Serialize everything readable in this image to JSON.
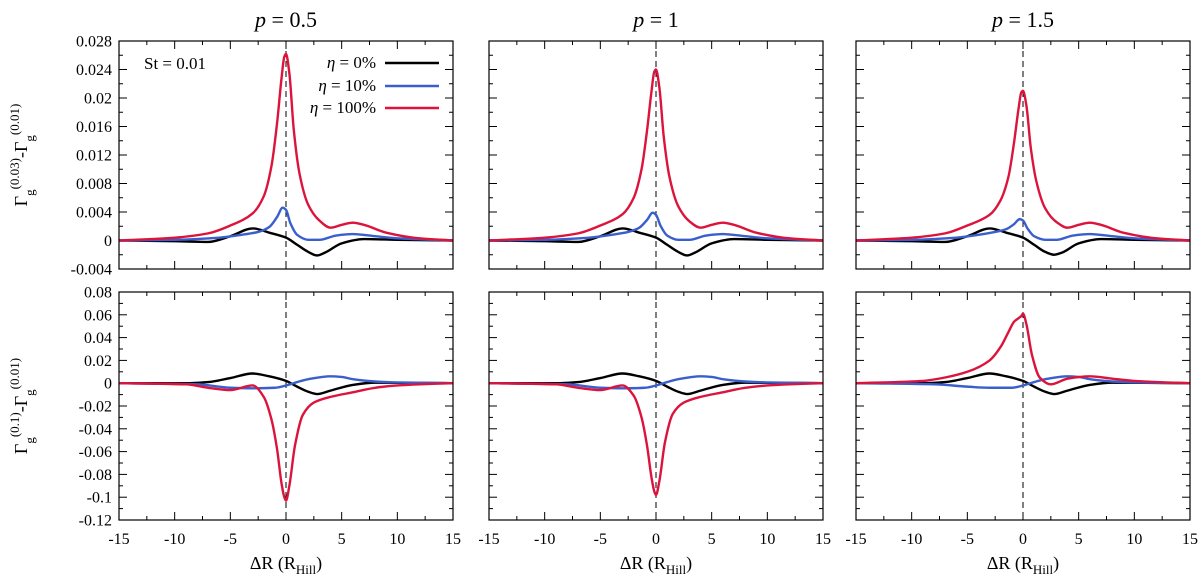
{
  "figure": {
    "columns": [
      {
        "title_var": "p",
        "title_eq": " = ",
        "title_val": "0.5"
      },
      {
        "title_var": "p",
        "title_eq": " = ",
        "title_val": "1"
      },
      {
        "title_var": "p",
        "title_eq": " = ",
        "title_val": "1.5"
      }
    ],
    "xlabel_main": "ΔR (R",
    "xlabel_sub": "Hill",
    "xlabel_close": ")",
    "ylabel_top": {
      "a": "Γ",
      "a_sub": "g",
      "a_sup": "(0.03)",
      "mid": "-Γ",
      "b_sub": "g",
      "b_sup": "(0.01)"
    },
    "ylabel_bottom": {
      "a": "Γ",
      "a_sub": "g",
      "a_sup": "(0.1)",
      "mid": "-Γ",
      "b_sub": "g",
      "b_sup": "(0.01)"
    },
    "annotation": "St = 0.01",
    "legend": [
      {
        "prefix": "η",
        "label": " = 0%",
        "color": "#000000"
      },
      {
        "prefix": "η",
        "label": " = 10%",
        "color": "#3a5fcd"
      },
      {
        "prefix": "η",
        "label": " = 100%",
        "color": "#dc143c"
      }
    ]
  },
  "chart_data": [
    {
      "type": "line",
      "row": 0,
      "col": 0,
      "xlim": [
        -15,
        15
      ],
      "ylim": [
        -0.004,
        0.028
      ],
      "xticks": [
        "-15",
        "-10",
        "-5",
        "0",
        "5",
        "10",
        "15"
      ],
      "yticks": [
        "-0.004",
        "0",
        "0.004",
        "0.008",
        "0.012",
        "0.016",
        "0.02",
        "0.024",
        "0.028"
      ],
      "vline_x": 0,
      "series": [
        {
          "name": "η = 0%",
          "color": "#000000",
          "x": [
            -15,
            -10,
            -7,
            -5,
            -3,
            -1.5,
            0,
            1,
            2,
            2.8,
            3.5,
            5,
            7,
            10,
            15
          ],
          "y": [
            0,
            -0.0001,
            -0.0002,
            0.0006,
            0.0017,
            0.0011,
            0.0004,
            -0.0006,
            -0.0016,
            -0.0021,
            -0.0017,
            -0.0004,
            0.0002,
            0.0001,
            0
          ]
        },
        {
          "name": "η = 10%",
          "color": "#3a5fcd",
          "x": [
            -15,
            -10,
            -6,
            -4,
            -2.5,
            -1.5,
            -0.8,
            -0.3,
            0,
            0.4,
            1,
            2,
            3,
            4.5,
            6,
            8,
            10,
            15
          ],
          "y": [
            0,
            0.0001,
            0.0004,
            0.0008,
            0.0012,
            0.0019,
            0.0033,
            0.0046,
            0.0043,
            0.0024,
            0.0008,
            0.0001,
            0.0001,
            0.0007,
            0.0009,
            0.0006,
            0.0003,
            0
          ]
        },
        {
          "name": "η = 100%",
          "color": "#dc143c",
          "x": [
            -15,
            -10,
            -7,
            -5,
            -3,
            -2,
            -1.3,
            -0.8,
            -0.4,
            -0.15,
            0,
            0.3,
            0.7,
            1.2,
            2,
            3,
            4,
            5,
            6,
            7,
            9,
            12,
            15
          ],
          "y": [
            0,
            0.0004,
            0.001,
            0.0021,
            0.0038,
            0.0062,
            0.0105,
            0.0165,
            0.0228,
            0.0258,
            0.0262,
            0.0235,
            0.0155,
            0.0095,
            0.005,
            0.0028,
            0.0018,
            0.0022,
            0.0025,
            0.0022,
            0.0011,
            0.0003,
            0
          ]
        }
      ]
    },
    {
      "type": "line",
      "row": 0,
      "col": 1,
      "xlim": [
        -15,
        15
      ],
      "ylim": [
        -0.004,
        0.028
      ],
      "xticks": [
        "-15",
        "-10",
        "-5",
        "0",
        "5",
        "10",
        "15"
      ],
      "vline_x": 0,
      "series": [
        {
          "name": "η = 0%",
          "color": "#000000",
          "x": [
            -15,
            -10,
            -7,
            -5,
            -3,
            -1.5,
            0,
            1,
            2,
            2.8,
            3.5,
            5,
            7,
            10,
            15
          ],
          "y": [
            0,
            -0.0001,
            -0.0002,
            0.0006,
            0.0017,
            0.0011,
            0.0004,
            -0.0006,
            -0.0016,
            -0.0021,
            -0.0017,
            -0.0004,
            0.0002,
            0.0001,
            0
          ]
        },
        {
          "name": "η = 10%",
          "color": "#3a5fcd",
          "x": [
            -15,
            -10,
            -6,
            -4,
            -2.5,
            -1.5,
            -0.8,
            -0.3,
            0,
            0.4,
            1,
            2,
            3,
            4.5,
            6,
            8,
            10,
            15
          ],
          "y": [
            0,
            0.0001,
            0.0004,
            0.0008,
            0.0012,
            0.0018,
            0.0029,
            0.0039,
            0.0036,
            0.0021,
            0.0007,
            0.0001,
            0.0001,
            0.0007,
            0.0009,
            0.0006,
            0.0003,
            0
          ]
        },
        {
          "name": "η = 100%",
          "color": "#dc143c",
          "x": [
            -15,
            -10,
            -7,
            -5,
            -3,
            -2,
            -1.3,
            -0.8,
            -0.4,
            -0.15,
            0,
            0.3,
            0.7,
            1.2,
            2,
            3,
            4,
            5,
            6,
            7,
            9,
            12,
            15
          ],
          "y": [
            0,
            0.0004,
            0.001,
            0.0021,
            0.0037,
            0.006,
            0.01,
            0.0155,
            0.021,
            0.0237,
            0.024,
            0.0215,
            0.0145,
            0.009,
            0.0048,
            0.0027,
            0.0018,
            0.0022,
            0.0025,
            0.0022,
            0.0011,
            0.0003,
            0
          ]
        }
      ]
    },
    {
      "type": "line",
      "row": 0,
      "col": 2,
      "xlim": [
        -15,
        15
      ],
      "ylim": [
        -0.004,
        0.028
      ],
      "xticks": [
        "-15",
        "-10",
        "-5",
        "0",
        "5",
        "10",
        "15"
      ],
      "vline_x": 0,
      "series": [
        {
          "name": "η = 0%",
          "color": "#000000",
          "x": [
            -15,
            -10,
            -7,
            -5,
            -3,
            -1.5,
            0,
            1,
            2,
            2.8,
            3.5,
            5,
            7,
            10,
            15
          ],
          "y": [
            0,
            -0.0001,
            -0.0002,
            0.0006,
            0.0017,
            0.0011,
            0.0004,
            -0.0006,
            -0.0016,
            -0.002,
            -0.0017,
            -0.0004,
            0.0002,
            0.0001,
            0
          ]
        },
        {
          "name": "η = 10%",
          "color": "#3a5fcd",
          "x": [
            -15,
            -10,
            -6,
            -4,
            -2.5,
            -1.5,
            -0.8,
            -0.3,
            0,
            0.4,
            1,
            2,
            3,
            4.5,
            6,
            8,
            10,
            15
          ],
          "y": [
            0,
            0.0001,
            0.0004,
            0.0008,
            0.0012,
            0.0016,
            0.0023,
            0.003,
            0.0028,
            0.0017,
            0.0006,
            0.0001,
            0.0001,
            0.0007,
            0.0009,
            0.0006,
            0.0003,
            0
          ]
        },
        {
          "name": "η = 100%",
          "color": "#dc143c",
          "x": [
            -15,
            -10,
            -7,
            -5,
            -3,
            -2,
            -1.3,
            -0.8,
            -0.4,
            -0.15,
            0,
            0.3,
            0.7,
            1.2,
            2,
            3,
            4,
            5,
            6,
            7,
            9,
            12,
            15
          ],
          "y": [
            0,
            0.0004,
            0.001,
            0.0021,
            0.0036,
            0.0057,
            0.009,
            0.0138,
            0.0185,
            0.0208,
            0.021,
            0.019,
            0.013,
            0.0083,
            0.0045,
            0.0026,
            0.0018,
            0.0022,
            0.0025,
            0.0022,
            0.0011,
            0.0003,
            0
          ]
        }
      ]
    },
    {
      "type": "line",
      "row": 1,
      "col": 0,
      "xlim": [
        -15,
        15
      ],
      "ylim": [
        -0.12,
        0.08
      ],
      "xticks": [
        "-15",
        "-10",
        "-5",
        "0",
        "5",
        "10",
        "15"
      ],
      "yticks": [
        "-0.12",
        "-0.1",
        "-0.08",
        "-0.06",
        "-0.04",
        "-0.02",
        "0",
        "0.02",
        "0.04",
        "0.06",
        "0.08"
      ],
      "vline_x": 0,
      "series": [
        {
          "name": "η = 0%",
          "color": "#000000",
          "x": [
            -15,
            -9,
            -7,
            -5,
            -3,
            -1.5,
            0,
            1,
            2,
            2.8,
            4,
            6,
            8,
            15
          ],
          "y": [
            0,
            0,
            0.001,
            0.0045,
            0.0085,
            0.006,
            0.002,
            -0.003,
            -0.0075,
            -0.0095,
            -0.0065,
            -0.0015,
            0.0005,
            0
          ]
        },
        {
          "name": "η = 10%",
          "color": "#3a5fcd",
          "x": [
            -15,
            -8,
            -5,
            -3,
            -1,
            0,
            1,
            2,
            4,
            5,
            6,
            8,
            10,
            15
          ],
          "y": [
            0,
            -0.001,
            -0.004,
            -0.0045,
            -0.004,
            -0.002,
            0.001,
            0.0035,
            0.006,
            0.0055,
            0.0035,
            0.0015,
            0.0007,
            0
          ]
        },
        {
          "name": "η = 100%",
          "color": "#dc143c",
          "x": [
            -15,
            -9,
            -7,
            -5,
            -3,
            -2,
            -1.3,
            -0.8,
            -0.4,
            -0.15,
            0,
            0.3,
            0.8,
            1.5,
            2.5,
            4,
            6,
            8,
            10,
            12,
            15
          ],
          "y": [
            0,
            -0.001,
            -0.004,
            -0.006,
            -0.002,
            -0.012,
            -0.032,
            -0.058,
            -0.088,
            -0.1,
            -0.103,
            -0.09,
            -0.055,
            -0.028,
            -0.017,
            -0.012,
            -0.008,
            -0.004,
            -0.002,
            -0.001,
            0
          ]
        }
      ]
    },
    {
      "type": "line",
      "row": 1,
      "col": 1,
      "xlim": [
        -15,
        15
      ],
      "ylim": [
        -0.12,
        0.08
      ],
      "xticks": [
        "-15",
        "-10",
        "-5",
        "0",
        "5",
        "10",
        "15"
      ],
      "vline_x": 0,
      "series": [
        {
          "name": "η = 0%",
          "color": "#000000",
          "x": [
            -15,
            -9,
            -7,
            -5,
            -3,
            -1.5,
            0,
            1,
            2,
            2.8,
            4,
            6,
            8,
            15
          ],
          "y": [
            0,
            0,
            0.001,
            0.0045,
            0.0085,
            0.006,
            0.002,
            -0.003,
            -0.0075,
            -0.0095,
            -0.0065,
            -0.0015,
            0.0005,
            0
          ]
        },
        {
          "name": "η = 10%",
          "color": "#3a5fcd",
          "x": [
            -15,
            -8,
            -5,
            -3,
            -1,
            0,
            1,
            2,
            4,
            5,
            6,
            8,
            10,
            15
          ],
          "y": [
            0,
            -0.001,
            -0.004,
            -0.0045,
            -0.004,
            -0.002,
            0.001,
            0.0035,
            0.006,
            0.0055,
            0.0035,
            0.0015,
            0.0007,
            0
          ]
        },
        {
          "name": "η = 100%",
          "color": "#dc143c",
          "x": [
            -15,
            -9,
            -7,
            -5,
            -3,
            -2,
            -1.3,
            -0.8,
            -0.4,
            -0.15,
            0,
            0.3,
            0.8,
            1.5,
            2.5,
            4,
            6,
            8,
            10,
            12,
            15
          ],
          "y": [
            0,
            -0.001,
            -0.004,
            -0.006,
            -0.002,
            -0.011,
            -0.03,
            -0.055,
            -0.083,
            -0.095,
            -0.098,
            -0.086,
            -0.052,
            -0.027,
            -0.017,
            -0.012,
            -0.008,
            -0.004,
            -0.002,
            -0.001,
            0
          ]
        }
      ]
    },
    {
      "type": "line",
      "row": 1,
      "col": 2,
      "xlim": [
        -15,
        15
      ],
      "ylim": [
        -0.12,
        0.08
      ],
      "xticks": [
        "-15",
        "-10",
        "-5",
        "0",
        "5",
        "10",
        "15"
      ],
      "vline_x": 0,
      "series": [
        {
          "name": "η = 0%",
          "color": "#000000",
          "x": [
            -15,
            -9,
            -7,
            -5,
            -3,
            -1.5,
            0,
            1,
            2,
            2.8,
            4,
            6,
            8,
            15
          ],
          "y": [
            0,
            0,
            0.001,
            0.0045,
            0.0085,
            0.006,
            0.002,
            -0.003,
            -0.0075,
            -0.0095,
            -0.0065,
            -0.0015,
            0.0005,
            0
          ]
        },
        {
          "name": "η = 10%",
          "color": "#3a5fcd",
          "x": [
            -15,
            -8,
            -5,
            -3,
            -1,
            0,
            1,
            2,
            4,
            5,
            6,
            8,
            10,
            15
          ],
          "y": [
            0,
            -0.001,
            -0.003,
            -0.004,
            -0.004,
            -0.002,
            0.001,
            0.0035,
            0.006,
            0.0055,
            0.0035,
            0.0015,
            0.0007,
            0
          ]
        },
        {
          "name": "η = 100%",
          "color": "#dc143c",
          "x": [
            -15,
            -9,
            -7,
            -5,
            -3,
            -2,
            -1.3,
            -0.8,
            -0.4,
            -0.15,
            0,
            0.3,
            0.8,
            1.5,
            2.5,
            4,
            6,
            8,
            10,
            12,
            15
          ],
          "y": [
            0,
            0.002,
            0.005,
            0.01,
            0.02,
            0.032,
            0.045,
            0.054,
            0.057,
            0.059,
            0.061,
            0.052,
            0.025,
            0.005,
            -0.001,
            0.004,
            0.006,
            0.004,
            0.002,
            0.001,
            0
          ]
        }
      ]
    }
  ]
}
